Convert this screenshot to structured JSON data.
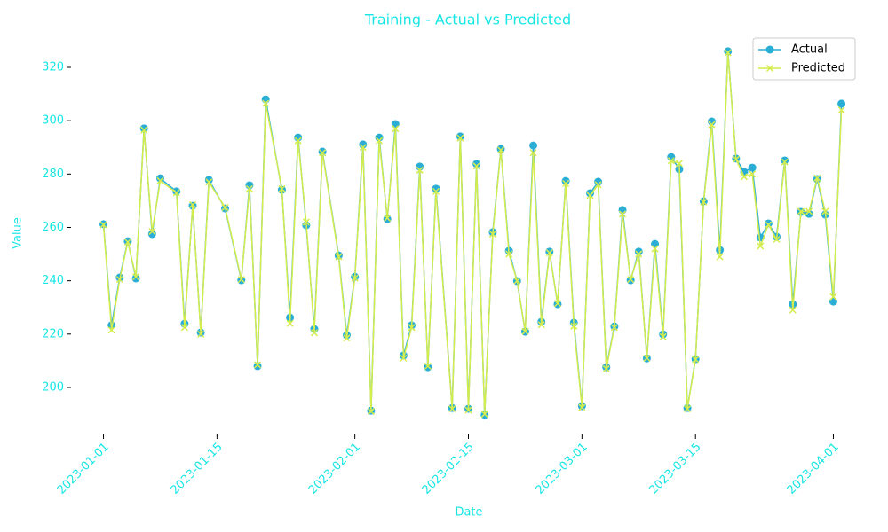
{
  "chart_data": {
    "type": "line",
    "title": "Training - Actual vs Predicted",
    "x_label": "Date",
    "y_label": "Value",
    "x": [
      "2023-01-01",
      "2023-01-02",
      "2023-01-03",
      "2023-01-04",
      "2023-01-05",
      "2023-01-06",
      "2023-01-07",
      "2023-01-08",
      "2023-01-10",
      "2023-01-11",
      "2023-01-12",
      "2023-01-13",
      "2023-01-14",
      "2023-01-16",
      "2023-01-18",
      "2023-01-19",
      "2023-01-20",
      "2023-01-21",
      "2023-01-23",
      "2023-01-24",
      "2023-01-25",
      "2023-01-26",
      "2023-01-27",
      "2023-01-28",
      "2023-01-30",
      "2023-01-31",
      "2023-02-01",
      "2023-02-02",
      "2023-02-03",
      "2023-02-04",
      "2023-02-05",
      "2023-02-06",
      "2023-02-07",
      "2023-02-08",
      "2023-02-09",
      "2023-02-10",
      "2023-02-11",
      "2023-02-13",
      "2023-02-14",
      "2023-02-15",
      "2023-02-16",
      "2023-02-17",
      "2023-02-18",
      "2023-02-19",
      "2023-02-20",
      "2023-02-21",
      "2023-02-22",
      "2023-02-23",
      "2023-02-24",
      "2023-02-25",
      "2023-02-26",
      "2023-02-27",
      "2023-02-28",
      "2023-03-01",
      "2023-03-02",
      "2023-03-03",
      "2023-03-04",
      "2023-03-05",
      "2023-03-06",
      "2023-03-07",
      "2023-03-08",
      "2023-03-09",
      "2023-03-10",
      "2023-03-11",
      "2023-03-12",
      "2023-03-13",
      "2023-03-14",
      "2023-03-15",
      "2023-03-16",
      "2023-03-17",
      "2023-03-18",
      "2023-03-19",
      "2023-03-20",
      "2023-03-21",
      "2023-03-22",
      "2023-03-23",
      "2023-03-24",
      "2023-03-25",
      "2023-03-26",
      "2023-03-27",
      "2023-03-28",
      "2023-03-29",
      "2023-03-30",
      "2023-03-31",
      "2023-04-01",
      "2023-04-02"
    ],
    "series": [
      {
        "name": "Actual",
        "color": "#2aaed6",
        "marker": "o",
        "values": [
          261.2,
          223.3,
          241.2,
          254.8,
          240.9,
          297.1,
          257.5,
          278.4,
          273.5,
          223.9,
          268.1,
          220.6,
          277.8,
          267.1,
          240.2,
          275.8,
          208.0,
          308.0,
          274.1,
          226.2,
          293.7,
          260.8,
          221.9,
          288.4,
          249.5,
          219.6,
          241.5,
          291.1,
          191.3,
          293.7,
          263.1,
          298.7,
          212.0,
          223.3,
          282.8,
          207.6,
          274.5,
          192.3,
          294.1,
          192.0,
          283.8,
          189.7,
          258.2,
          289.4,
          251.2,
          239.9,
          220.9,
          290.7,
          224.6,
          250.9,
          231.2,
          277.4,
          224.3,
          193.0,
          272.8,
          277.1,
          207.6,
          222.9,
          266.5,
          240.2,
          250.9,
          210.9,
          253.8,
          219.9,
          286.4,
          281.8,
          192.3,
          210.6,
          269.8,
          299.7,
          251.5,
          326.0,
          285.8,
          280.8,
          282.4,
          256.2,
          261.5,
          256.5,
          285.1,
          231.2,
          265.8,
          265.1,
          278.1,
          264.8,
          232.2,
          306.4
        ]
      },
      {
        "name": "Predicted",
        "color": "#d4ec4c",
        "marker": "x",
        "values": [
          261.0,
          221.5,
          240.5,
          254.5,
          241.5,
          296.5,
          258.5,
          277.5,
          273.0,
          222.5,
          268.5,
          220.0,
          277.0,
          267.5,
          240.5,
          274.5,
          208.5,
          306.5,
          274.5,
          224.0,
          292.5,
          262.0,
          220.5,
          288.0,
          249.0,
          218.5,
          241.0,
          290.0,
          191.0,
          292.5,
          263.5,
          297.0,
          211.0,
          222.5,
          281.5,
          208.0,
          273.5,
          192.0,
          293.5,
          191.5,
          283.0,
          190.0,
          257.5,
          289.0,
          250.0,
          240.0,
          221.0,
          288.0,
          223.5,
          250.5,
          231.5,
          276.5,
          223.0,
          192.5,
          272.0,
          276.0,
          207.0,
          222.5,
          265.0,
          240.5,
          250.0,
          211.0,
          252.0,
          219.0,
          285.0,
          284.0,
          192.0,
          210.5,
          269.5,
          298.5,
          249.0,
          325.5,
          285.5,
          279.0,
          280.0,
          253.0,
          261.0,
          255.5,
          284.5,
          229.0,
          266.0,
          266.0,
          278.5,
          266.0,
          234.0,
          304.0
        ]
      }
    ],
    "xlim": [
      "2022-12-28",
      "2023-04-05"
    ],
    "xticks": [
      "2023-01-01",
      "2023-01-15",
      "2023-02-01",
      "2023-02-15",
      "2023-03-01",
      "2023-03-15",
      "2023-04-01"
    ],
    "ylim": [
      185.7,
      330.3
    ],
    "yticks": [
      200,
      220,
      240,
      260,
      280,
      300,
      320
    ],
    "legend_position": "upper-right"
  }
}
